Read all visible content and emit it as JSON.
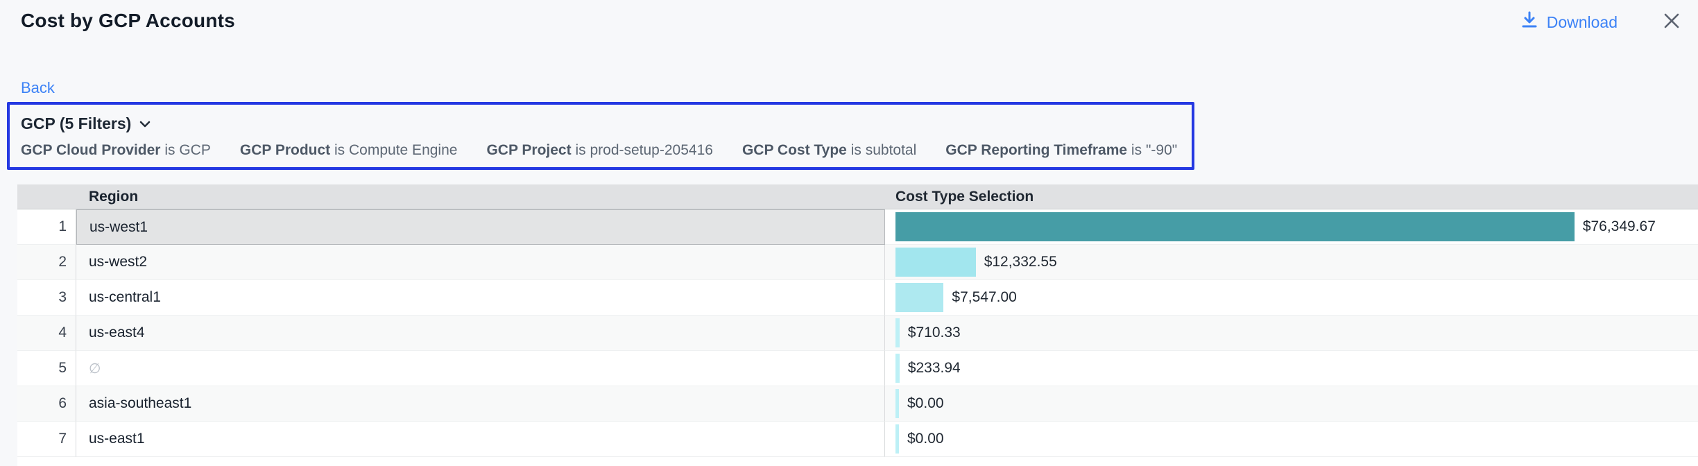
{
  "header": {
    "title": "Cost by GCP Accounts",
    "download_label": "Download"
  },
  "nav": {
    "back_label": "Back"
  },
  "filter_box": {
    "summary": "GCP (5 Filters)",
    "filters": [
      {
        "label": "GCP Cloud Provider",
        "operator": "is",
        "value": "GCP"
      },
      {
        "label": "GCP Product",
        "operator": "is",
        "value": "Compute Engine"
      },
      {
        "label": "GCP Project",
        "operator": "is",
        "value": "prod-setup-205416"
      },
      {
        "label": "GCP Cost Type",
        "operator": "is",
        "value": "subtotal"
      },
      {
        "label": "GCP Reporting Timeframe",
        "operator": "is",
        "value": "\"-90\""
      }
    ]
  },
  "table": {
    "columns": {
      "region": "Region",
      "cost": "Cost Type Selection"
    },
    "rows": [
      {
        "num": "1",
        "region": "us-west1",
        "cost": "$76,349.67",
        "bar_pct": 84.6,
        "bar_color": "#469da6",
        "selected": true,
        "region_empty": false
      },
      {
        "num": "2",
        "region": "us-west2",
        "cost": "$12,332.55",
        "bar_pct": 10.0,
        "bar_color": "#a2e6ee",
        "selected": false,
        "region_empty": false
      },
      {
        "num": "3",
        "region": "us-central1",
        "cost": "$7,547.00",
        "bar_pct": 6.0,
        "bar_color": "#aee9f0",
        "selected": false,
        "region_empty": false
      },
      {
        "num": "4",
        "region": "us-east4",
        "cost": "$710.33",
        "bar_pct": 0.5,
        "bar_color": "#bdf0f6",
        "selected": false,
        "region_empty": false
      },
      {
        "num": "5",
        "region": "∅",
        "cost": "$233.94",
        "bar_pct": 0.5,
        "bar_color": "#bdf0f6",
        "selected": false,
        "region_empty": true
      },
      {
        "num": "6",
        "region": "asia-southeast1",
        "cost": "$0.00",
        "bar_pct": 0.4,
        "bar_color": "#bdf0f6",
        "selected": false,
        "region_empty": false
      },
      {
        "num": "7",
        "region": "us-east1",
        "cost": "$0.00",
        "bar_pct": 0.4,
        "bar_color": "#bdf0f6",
        "selected": false,
        "region_empty": false
      }
    ]
  },
  "chart_data": {
    "type": "bar",
    "orientation": "horizontal",
    "title": "Cost Type Selection",
    "categories": [
      "us-west1",
      "us-west2",
      "us-central1",
      "us-east4",
      "∅",
      "asia-southeast1",
      "us-east1"
    ],
    "values": [
      76349.67,
      12332.55,
      7547.0,
      710.33,
      233.94,
      0.0,
      0.0
    ],
    "value_labels": [
      "$76,349.67",
      "$12,332.55",
      "$7,547.00",
      "$710.33",
      "$233.94",
      "$0.00",
      "$0.00"
    ],
    "bar_colors": [
      "#469da6",
      "#a2e6ee",
      "#aee9f0",
      "#bdf0f6",
      "#bdf0f6",
      "#bdf0f6",
      "#bdf0f6"
    ]
  },
  "colors": {
    "accent_blue": "#3c82f6",
    "filter_border_blue": "#2438e2",
    "bar_teal": "#469da6",
    "bar_cyan": "#a2e6ee",
    "header_gray": "#e0e1e3",
    "selected_gray": "#e3e4e5",
    "page_bg": "#f7f8fa"
  }
}
